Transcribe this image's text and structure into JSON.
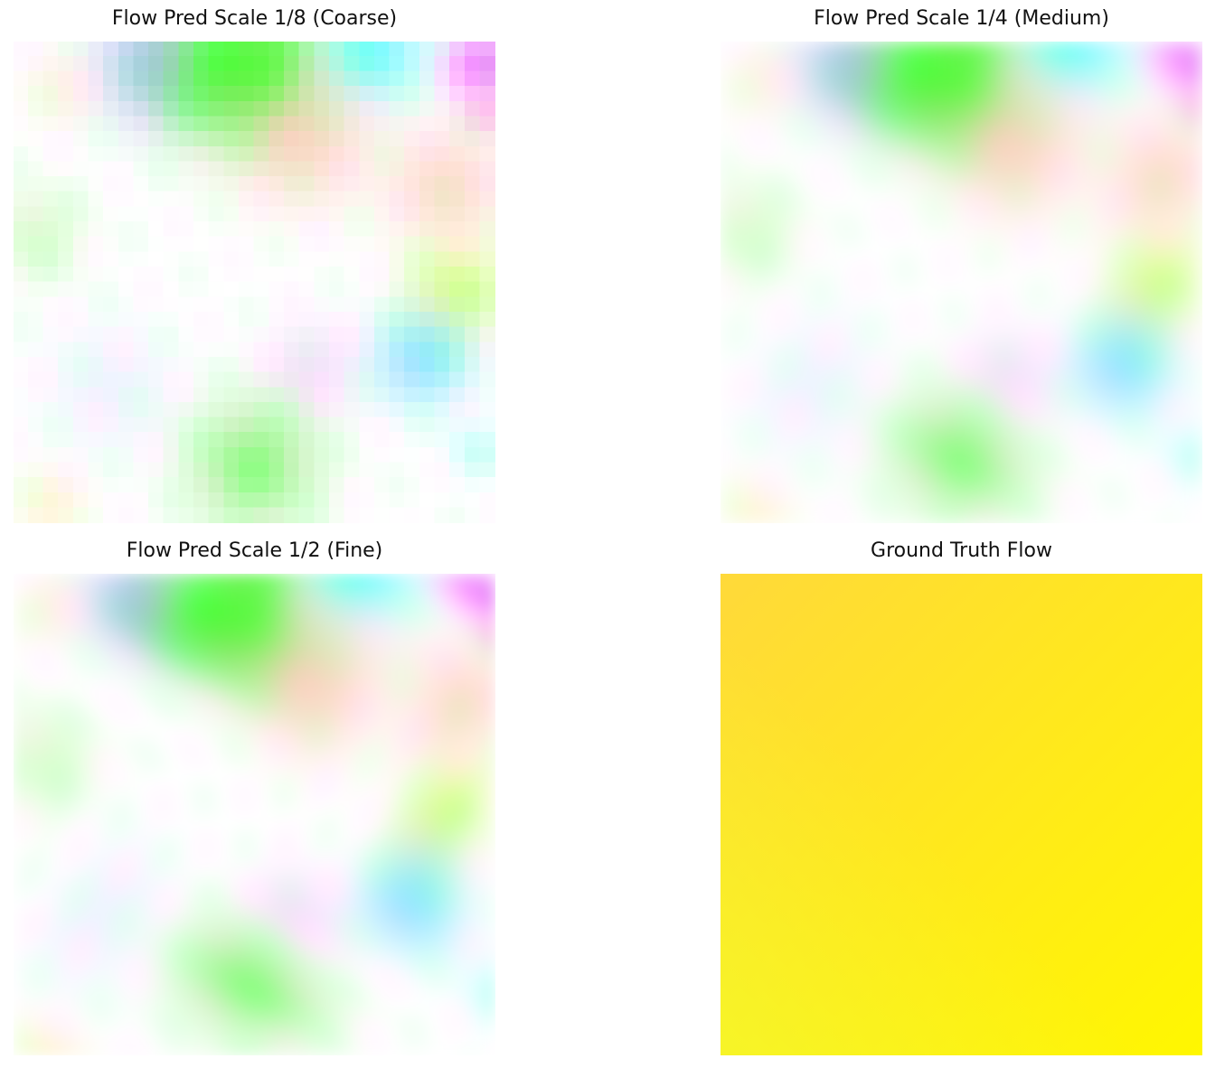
{
  "panels": [
    {
      "title": "Flow Pred Scale 1/8 (Coarse)",
      "kind": "coarse"
    },
    {
      "title": "Flow Pred Scale 1/4 (Medium)",
      "kind": "medium"
    },
    {
      "title": "Flow Pred Scale 1/2 (Fine)",
      "kind": "fine"
    },
    {
      "title": "Ground Truth Flow",
      "kind": "ground-truth"
    }
  ],
  "colors": {
    "gt_top_left": "#ffd93a",
    "gt_bottom_right": "#fff700",
    "gt_bottom_left": "#f0ff30"
  }
}
